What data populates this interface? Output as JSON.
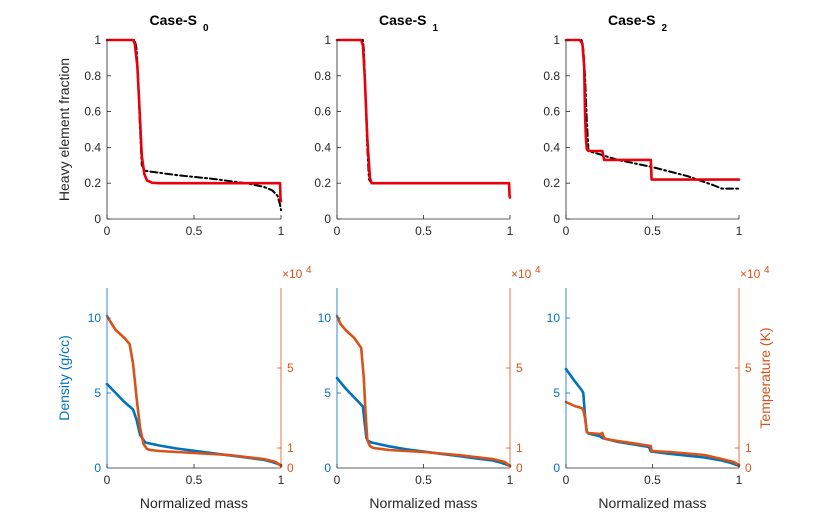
{
  "colors": {
    "black_series": "#000000",
    "red_series": "#e8000b",
    "density": "#0072bd",
    "temperature": "#d95319",
    "axis": "#262626"
  },
  "chart_data": [
    {
      "type": "line",
      "title": "Case-S",
      "title_subscript": "0",
      "xlabel": "",
      "ylabel": "Heavy element fraction",
      "xlim": [
        0,
        1
      ],
      "ylim": [
        0,
        1
      ],
      "xticks": [
        {
          "v": 0,
          "t": "0"
        },
        {
          "v": 0.5,
          "t": "0.5"
        },
        {
          "v": 1,
          "t": "1"
        }
      ],
      "yticks": [
        {
          "v": 0,
          "t": "0"
        },
        {
          "v": 0.2,
          "t": "0.2"
        },
        {
          "v": 0.4,
          "t": "0.4"
        },
        {
          "v": 0.6,
          "t": "0.6"
        },
        {
          "v": 0.8,
          "t": "0.8"
        },
        {
          "v": 1,
          "t": "1"
        }
      ],
      "series": [
        {
          "name": "dashdot",
          "style": "dashdot",
          "color": "#000000",
          "x": [
            0,
            0.16,
            0.17,
            0.18,
            0.19,
            0.2,
            0.22,
            0.25,
            0.4,
            0.6,
            0.8,
            0.9,
            0.95,
            0.98,
            0.995,
            1
          ],
          "y": [
            1,
            1,
            0.95,
            0.75,
            0.5,
            0.3,
            0.27,
            0.265,
            0.245,
            0.225,
            0.2,
            0.18,
            0.16,
            0.13,
            0.08,
            0.05
          ]
        },
        {
          "name": "solid",
          "style": "solid",
          "color": "#e8000b",
          "x": [
            0,
            0.15,
            0.16,
            0.175,
            0.19,
            0.2,
            0.215,
            0.23,
            0.26,
            0.3,
            0.6,
            0.995,
            0.997,
            1
          ],
          "y": [
            1,
            1,
            0.98,
            0.85,
            0.55,
            0.35,
            0.25,
            0.215,
            0.202,
            0.2,
            0.2,
            0.2,
            0.11,
            0.1
          ]
        }
      ]
    },
    {
      "type": "line",
      "title": "Case-S",
      "title_subscript": "1",
      "xlabel": "",
      "ylabel": "",
      "xlim": [
        0,
        1
      ],
      "ylim": [
        0,
        1
      ],
      "xticks": [
        {
          "v": 0,
          "t": "0"
        },
        {
          "v": 0.5,
          "t": "0.5"
        },
        {
          "v": 1,
          "t": "1"
        }
      ],
      "yticks": [
        {
          "v": 0,
          "t": "0"
        },
        {
          "v": 0.2,
          "t": "0.2"
        },
        {
          "v": 0.4,
          "t": "0.4"
        },
        {
          "v": 0.6,
          "t": "0.6"
        },
        {
          "v": 0.8,
          "t": "0.8"
        },
        {
          "v": 1,
          "t": "1"
        }
      ],
      "series": [
        {
          "name": "dashdot",
          "style": "dashdot",
          "color": "#000000",
          "x": [
            0,
            0.15,
            0.155,
            0.165,
            0.175,
            0.185,
            0.2,
            0.6,
            1
          ],
          "y": [
            1,
            1,
            0.95,
            0.7,
            0.4,
            0.22,
            0.2,
            0.2,
            0.2
          ]
        },
        {
          "name": "solid",
          "style": "solid",
          "color": "#e8000b",
          "x": [
            0,
            0.14,
            0.15,
            0.16,
            0.175,
            0.19,
            0.2,
            0.6,
            0.995,
            0.997,
            1
          ],
          "y": [
            1,
            1,
            0.97,
            0.8,
            0.45,
            0.23,
            0.2,
            0.2,
            0.2,
            0.13,
            0.12
          ]
        }
      ]
    },
    {
      "type": "line",
      "title": "Case-S",
      "title_subscript": "2",
      "xlabel": "",
      "ylabel": "",
      "xlim": [
        0,
        1
      ],
      "ylim": [
        0,
        1
      ],
      "xticks": [
        {
          "v": 0,
          "t": "0"
        },
        {
          "v": 0.5,
          "t": "0.5"
        },
        {
          "v": 1,
          "t": "1"
        }
      ],
      "yticks": [
        {
          "v": 0,
          "t": "0"
        },
        {
          "v": 0.2,
          "t": "0.2"
        },
        {
          "v": 0.4,
          "t": "0.4"
        },
        {
          "v": 0.6,
          "t": "0.6"
        },
        {
          "v": 0.8,
          "t": "0.8"
        },
        {
          "v": 1,
          "t": "1"
        }
      ],
      "series": [
        {
          "name": "dashdot",
          "style": "dashdot",
          "color": "#000000",
          "x": [
            0,
            0.09,
            0.1,
            0.11,
            0.12,
            0.13,
            0.2,
            0.3,
            0.5,
            0.7,
            0.85,
            0.9,
            1
          ],
          "y": [
            1,
            1,
            0.95,
            0.8,
            0.55,
            0.38,
            0.36,
            0.33,
            0.29,
            0.24,
            0.19,
            0.17,
            0.17
          ]
        },
        {
          "name": "solid",
          "style": "solid",
          "color": "#e8000b",
          "x": [
            0,
            0.08,
            0.095,
            0.105,
            0.11,
            0.115,
            0.12,
            0.13,
            0.21,
            0.22,
            0.49,
            0.495,
            1
          ],
          "y": [
            1,
            1,
            0.98,
            0.85,
            0.6,
            0.45,
            0.39,
            0.38,
            0.38,
            0.33,
            0.33,
            0.22,
            0.22
          ]
        }
      ]
    },
    {
      "type": "line",
      "title": "",
      "xlabel": "Normalized mass",
      "ylabel": "Density (g/cc)",
      "y2label": "",
      "y2_multiplier": "×10",
      "y2_exponent": "4",
      "xlim": [
        0,
        1
      ],
      "ylim": [
        0,
        12
      ],
      "y2lim": [
        0,
        9
      ],
      "xticks": [
        {
          "v": 0,
          "t": "0"
        },
        {
          "v": 0.5,
          "t": "0.5"
        },
        {
          "v": 1,
          "t": "1"
        }
      ],
      "yticks": [
        {
          "v": 0,
          "t": "0"
        },
        {
          "v": 5,
          "t": "5"
        },
        {
          "v": 10,
          "t": "10"
        }
      ],
      "y2ticks": [
        {
          "v": 0,
          "t": "0"
        },
        {
          "v": 1,
          "t": "1"
        },
        {
          "v": 5,
          "t": "5"
        }
      ],
      "series": [
        {
          "name": "Density",
          "axis": "left",
          "color": "#0072bd",
          "x": [
            0,
            0.05,
            0.1,
            0.15,
            0.17,
            0.19,
            0.22,
            0.3,
            0.4,
            0.5,
            0.6,
            0.7,
            0.8,
            0.9,
            0.95,
            1
          ],
          "y": [
            5.6,
            5.0,
            4.4,
            3.9,
            3.2,
            2.2,
            1.7,
            1.5,
            1.3,
            1.15,
            1.0,
            0.85,
            0.7,
            0.55,
            0.4,
            0.2
          ]
        },
        {
          "name": "Temperature",
          "axis": "right",
          "color": "#d95319",
          "x": [
            0,
            0.02,
            0.05,
            0.1,
            0.13,
            0.15,
            0.17,
            0.19,
            0.21,
            0.23,
            0.25,
            0.3,
            0.5,
            0.7,
            0.9,
            0.97,
            1
          ],
          "y": [
            7.6,
            7.3,
            6.9,
            6.5,
            6.2,
            5.2,
            3.5,
            2.0,
            1.2,
            0.95,
            0.9,
            0.85,
            0.75,
            0.65,
            0.45,
            0.3,
            0.1
          ]
        }
      ]
    },
    {
      "type": "line",
      "title": "",
      "xlabel": "Normalized mass",
      "ylabel": "",
      "y2label": "",
      "y2_multiplier": "×10",
      "y2_exponent": "4",
      "xlim": [
        0,
        1
      ],
      "ylim": [
        0,
        12
      ],
      "y2lim": [
        0,
        9
      ],
      "xticks": [
        {
          "v": 0,
          "t": "0"
        },
        {
          "v": 0.5,
          "t": "0.5"
        },
        {
          "v": 1,
          "t": "1"
        }
      ],
      "yticks": [
        {
          "v": 0,
          "t": "0"
        },
        {
          "v": 5,
          "t": "5"
        },
        {
          "v": 10,
          "t": "10"
        }
      ],
      "y2ticks": [
        {
          "v": 0,
          "t": "0"
        },
        {
          "v": 1,
          "t": "1"
        },
        {
          "v": 5,
          "t": "5"
        }
      ],
      "series": [
        {
          "name": "Density",
          "axis": "left",
          "color": "#0072bd",
          "x": [
            0,
            0.05,
            0.1,
            0.15,
            0.16,
            0.17,
            0.18,
            0.2,
            0.3,
            0.4,
            0.5,
            0.6,
            0.7,
            0.8,
            0.9,
            0.95,
            1
          ],
          "y": [
            6.0,
            5.3,
            4.7,
            4.1,
            3.0,
            2.0,
            1.8,
            1.7,
            1.45,
            1.25,
            1.1,
            0.95,
            0.8,
            0.65,
            0.5,
            0.35,
            0.15
          ]
        },
        {
          "name": "Temperature",
          "axis": "right",
          "color": "#d95319",
          "x": [
            0,
            0.02,
            0.05,
            0.1,
            0.14,
            0.155,
            0.165,
            0.175,
            0.19,
            0.21,
            0.3,
            0.5,
            0.7,
            0.9,
            0.97,
            1
          ],
          "y": [
            7.6,
            7.2,
            6.9,
            6.5,
            6.0,
            4.5,
            2.8,
            1.4,
            1.1,
            1.0,
            0.9,
            0.8,
            0.65,
            0.45,
            0.3,
            0.1
          ]
        }
      ]
    },
    {
      "type": "line",
      "title": "",
      "xlabel": "Normalized mass",
      "ylabel": "",
      "y2label": "Temperature (K)",
      "y2_multiplier": "×10",
      "y2_exponent": "4",
      "xlim": [
        0,
        1
      ],
      "ylim": [
        0,
        12
      ],
      "y2lim": [
        0,
        9
      ],
      "xticks": [
        {
          "v": 0,
          "t": "0"
        },
        {
          "v": 0.5,
          "t": "0.5"
        },
        {
          "v": 1,
          "t": "1"
        }
      ],
      "yticks": [
        {
          "v": 0,
          "t": "0"
        },
        {
          "v": 5,
          "t": "5"
        },
        {
          "v": 10,
          "t": "10"
        }
      ],
      "y2ticks": [
        {
          "v": 0,
          "t": "0"
        },
        {
          "v": 1,
          "t": "1"
        },
        {
          "v": 5,
          "t": "5"
        }
      ],
      "series": [
        {
          "name": "Density",
          "axis": "left",
          "color": "#0072bd",
          "x": [
            0,
            0.05,
            0.09,
            0.1,
            0.11,
            0.12,
            0.13,
            0.2,
            0.21,
            0.3,
            0.48,
            0.49,
            0.6,
            0.8,
            0.9,
            0.95,
            1
          ],
          "y": [
            6.6,
            5.8,
            5.2,
            5.0,
            3.5,
            2.4,
            2.3,
            2.1,
            2.0,
            1.75,
            1.4,
            1.1,
            0.95,
            0.7,
            0.5,
            0.35,
            0.15
          ]
        },
        {
          "name": "Temperature",
          "axis": "right",
          "color": "#d95319",
          "x": [
            0,
            0.05,
            0.09,
            0.1,
            0.11,
            0.12,
            0.13,
            0.2,
            0.21,
            0.22,
            0.23,
            0.3,
            0.49,
            0.495,
            0.6,
            0.8,
            0.9,
            0.97,
            1
          ],
          "y": [
            3.3,
            3.1,
            3.0,
            2.9,
            2.5,
            1.8,
            1.75,
            1.7,
            1.75,
            1.5,
            1.45,
            1.35,
            1.1,
            0.85,
            0.8,
            0.65,
            0.45,
            0.3,
            0.15
          ]
        }
      ]
    }
  ]
}
